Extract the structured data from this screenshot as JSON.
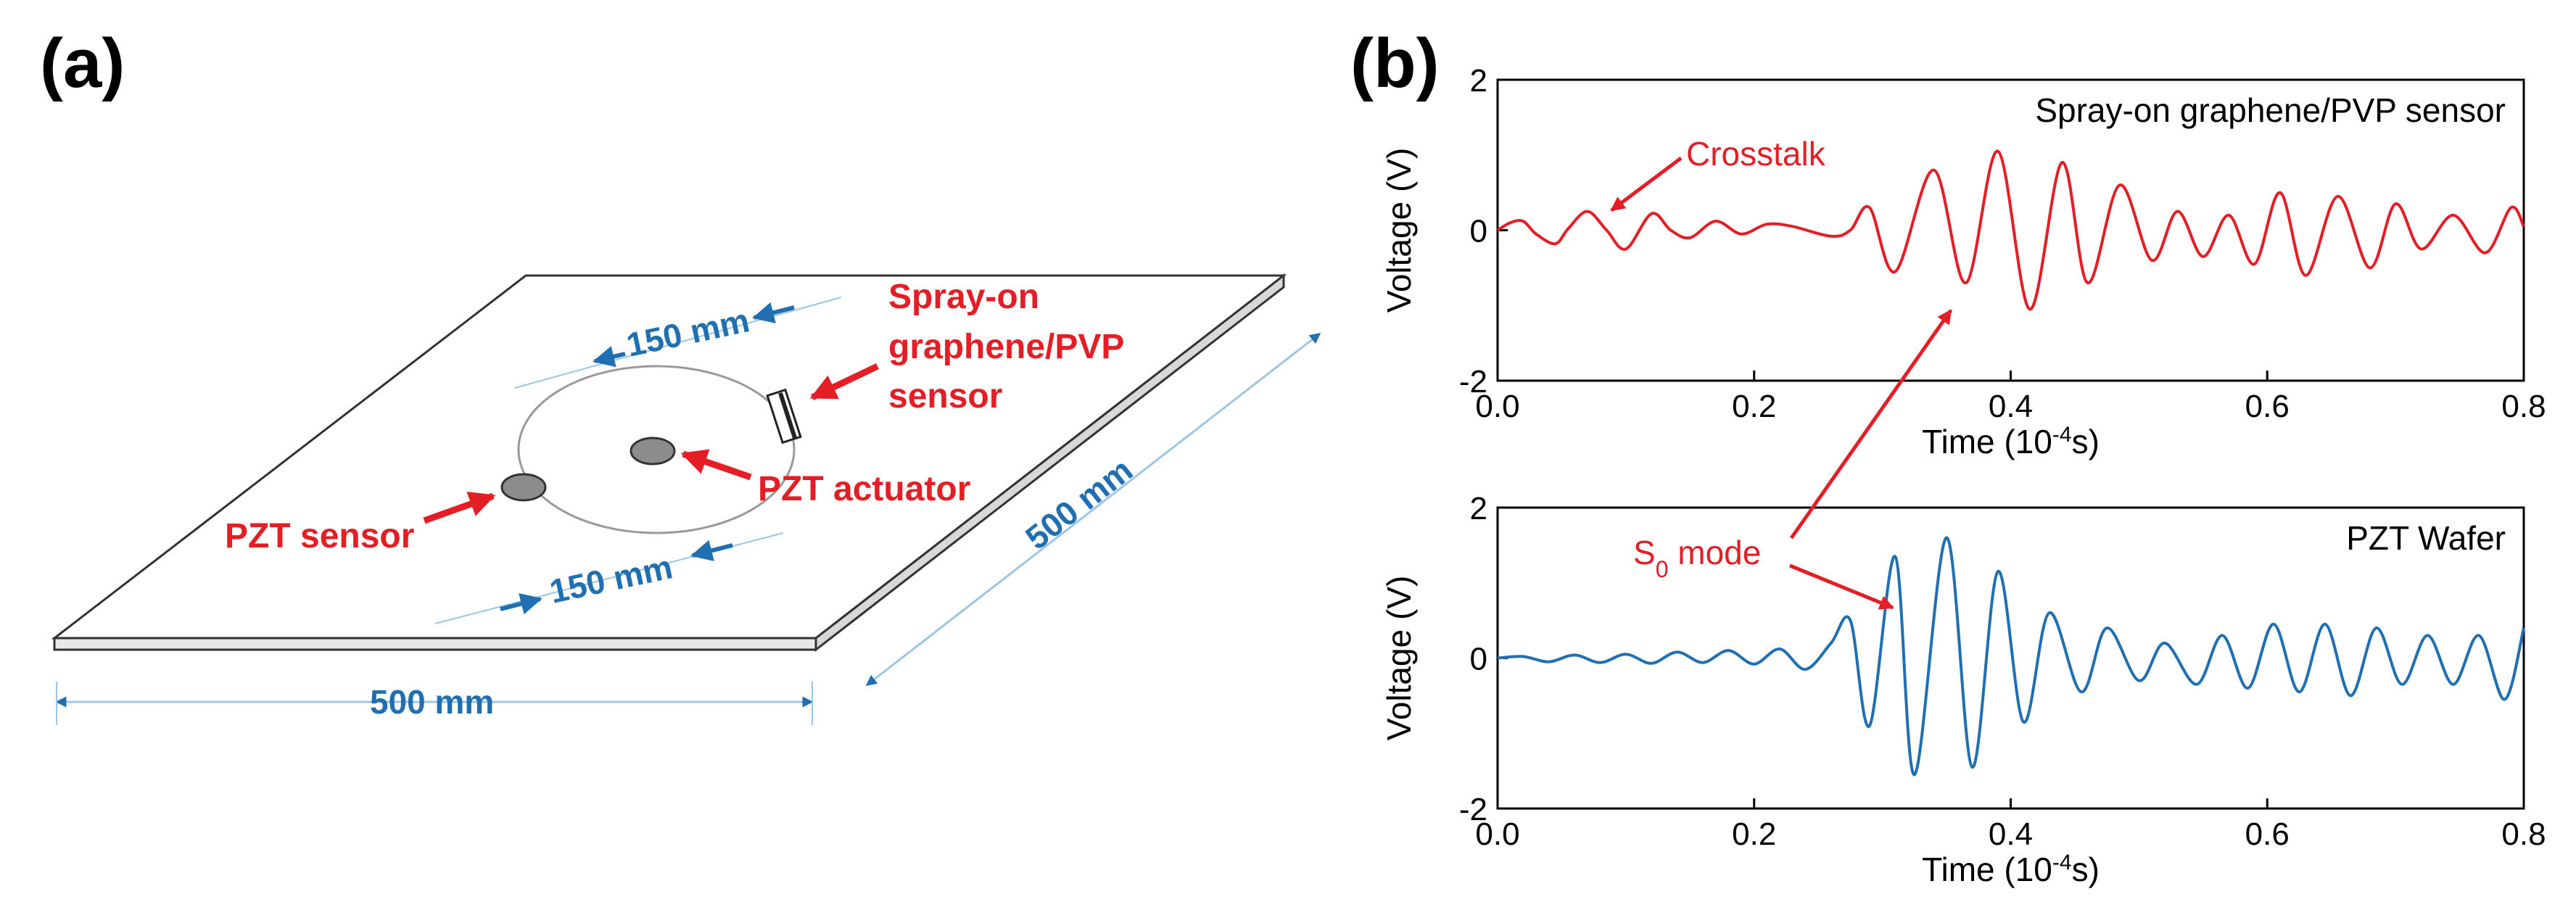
{
  "panels": {
    "a_label": "(a)",
    "b_label": "(b)"
  },
  "schematic": {
    "plate_width": "500 mm",
    "plate_depth": "500 mm",
    "radius_top": "150 mm",
    "radius_bottom": "150 mm",
    "spray_sensor_lines": [
      "Spray-on",
      "graphene/PVP",
      "sensor"
    ],
    "pzt_actuator": "PZT actuator",
    "pzt_sensor": "PZT sensor"
  },
  "annotations": {
    "crosstalk": "Crosstalk",
    "s0_prefix": "S",
    "s0_sub": "0",
    "s0_suffix": " mode"
  },
  "colors": {
    "red": "#e51e25",
    "blue": "#1f6fb2",
    "dim_line": "#9cc6e4"
  },
  "chart_data": [
    {
      "type": "line",
      "title": "Spray-on graphene/PVP sensor",
      "xlabel": "Time (10",
      "xlabel_sup": "-4",
      "xlabel_suffix": "s)",
      "ylabel": "Voltage (V)",
      "xlim": [
        0.0,
        0.8
      ],
      "ylim": [
        -2,
        2
      ],
      "xticks": [
        "0.0",
        "0.2",
        "0.4",
        "0.6",
        "0.8"
      ],
      "yticks": [
        "-2",
        "0",
        "2"
      ],
      "color": "#e51e25",
      "series": [
        {
          "name": "Spray-on graphene/PVP sensor",
          "x": [
            0.0,
            0.01,
            0.02,
            0.03,
            0.045,
            0.055,
            0.07,
            0.085,
            0.1,
            0.12,
            0.135,
            0.15,
            0.17,
            0.19,
            0.21,
            0.23,
            0.26,
            0.275,
            0.29,
            0.31,
            0.34,
            0.365,
            0.39,
            0.415,
            0.44,
            0.46,
            0.485,
            0.51,
            0.53,
            0.55,
            0.57,
            0.59,
            0.61,
            0.63,
            0.655,
            0.68,
            0.7,
            0.72,
            0.745,
            0.77,
            0.79,
            0.8
          ],
          "values": [
            0.0,
            0.1,
            0.12,
            -0.05,
            -0.18,
            0.02,
            0.25,
            0.0,
            -0.25,
            0.22,
            0.0,
            -0.1,
            0.12,
            -0.05,
            0.08,
            0.05,
            -0.08,
            0.0,
            0.3,
            -0.55,
            0.8,
            -0.7,
            1.05,
            -1.05,
            0.9,
            -0.7,
            0.6,
            -0.4,
            0.25,
            -0.35,
            0.2,
            -0.45,
            0.5,
            -0.6,
            0.45,
            -0.5,
            0.35,
            -0.25,
            0.2,
            -0.3,
            0.3,
            0.05
          ]
        }
      ]
    },
    {
      "type": "line",
      "title": "PZT Wafer",
      "xlabel": "Time (10",
      "xlabel_sup": "-4",
      "xlabel_suffix": "s)",
      "ylabel": "Voltage (V)",
      "xlim": [
        0.0,
        0.8
      ],
      "ylim": [
        -2,
        2
      ],
      "xticks": [
        "0.0",
        "0.2",
        "0.4",
        "0.6",
        "0.8"
      ],
      "yticks": [
        "-2",
        "0",
        "2"
      ],
      "color": "#1f6fb2",
      "series": [
        {
          "name": "PZT Wafer",
          "x": [
            0.0,
            0.02,
            0.04,
            0.06,
            0.08,
            0.1,
            0.12,
            0.14,
            0.16,
            0.18,
            0.2,
            0.22,
            0.24,
            0.26,
            0.275,
            0.29,
            0.31,
            0.325,
            0.35,
            0.37,
            0.39,
            0.41,
            0.43,
            0.455,
            0.475,
            0.5,
            0.52,
            0.545,
            0.565,
            0.585,
            0.605,
            0.625,
            0.645,
            0.665,
            0.685,
            0.705,
            0.725,
            0.745,
            0.765,
            0.785,
            0.8
          ],
          "values": [
            0.0,
            0.02,
            -0.05,
            0.04,
            -0.06,
            0.05,
            -0.07,
            0.08,
            -0.06,
            0.1,
            -0.08,
            0.12,
            -0.15,
            0.2,
            0.5,
            -0.9,
            1.35,
            -1.55,
            1.6,
            -1.45,
            1.15,
            -0.85,
            0.6,
            -0.45,
            0.4,
            -0.3,
            0.2,
            -0.35,
            0.3,
            -0.4,
            0.45,
            -0.45,
            0.45,
            -0.5,
            0.4,
            -0.35,
            0.3,
            -0.35,
            0.3,
            -0.55,
            0.4
          ]
        }
      ]
    }
  ]
}
